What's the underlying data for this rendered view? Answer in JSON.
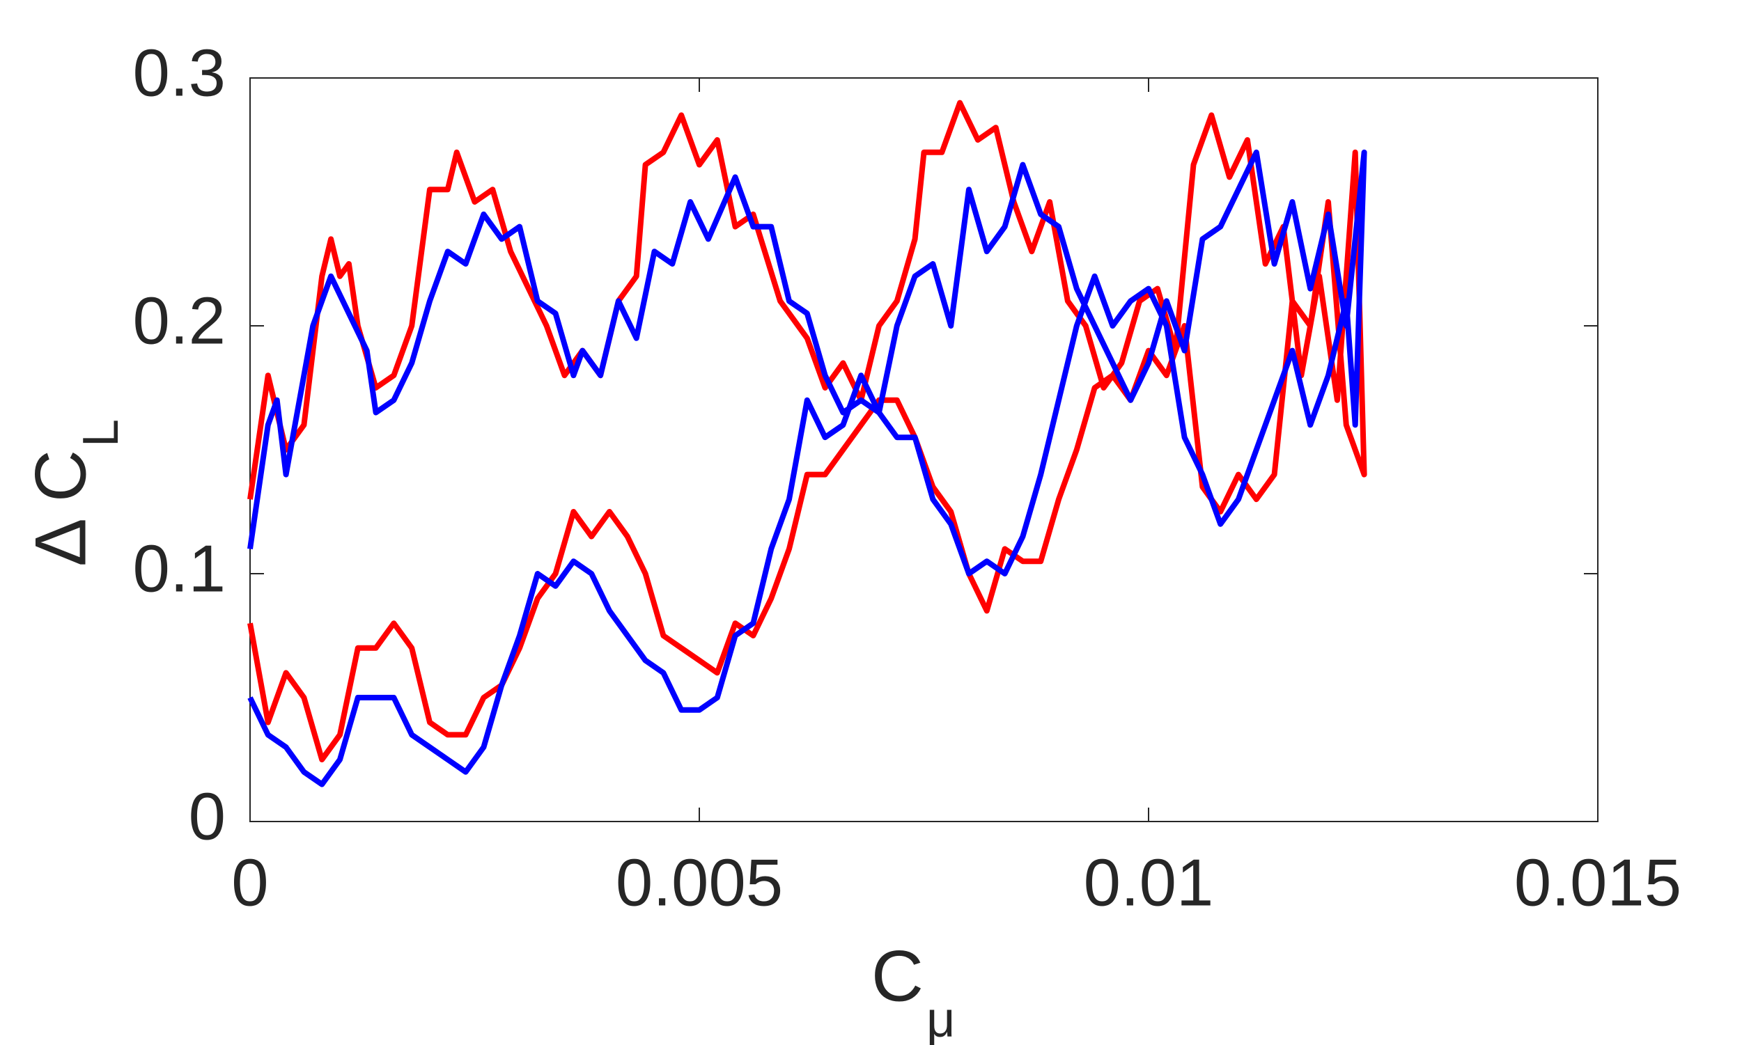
{
  "chart_data": {
    "type": "line",
    "xlabel": {
      "text": "C",
      "subscript": "μ"
    },
    "ylabel": {
      "text": "Δ C",
      "subscript": "L"
    },
    "xlim": [
      0,
      0.015
    ],
    "xticks": [
      0,
      0.005,
      0.01,
      0.015
    ],
    "ylim": [
      0,
      0.3
    ],
    "yticks": [
      0,
      0.1,
      0.2,
      0.3
    ],
    "series": [
      {
        "color": "#ff0000",
        "x": [
          0,
          0.0002,
          0.0004,
          0.0006,
          0.0008,
          0.0009,
          0.001,
          0.0011,
          0.0012,
          0.0014,
          0.0016,
          0.0018,
          0.002,
          0.0022,
          0.0023,
          0.0025,
          0.0027,
          0.0029,
          0.0031,
          0.0033,
          0.0035,
          0.0037,
          0.0039,
          0.0041,
          0.0043,
          0.0044,
          0.0046,
          0.0048,
          0.005,
          0.0052,
          0.0054,
          0.0056,
          0.0059,
          0.0062,
          0.0064,
          0.0066,
          0.0068,
          0.007,
          0.0072,
          0.0074,
          0.0075,
          0.0077,
          0.0079,
          0.0081,
          0.0083,
          0.0085,
          0.0087,
          0.0089,
          0.0091,
          0.0093,
          0.0095,
          0.0097,
          0.0099,
          0.0101,
          0.0103,
          0.0105,
          0.0107,
          0.0109,
          0.0111,
          0.0113,
          0.0115,
          0.0117,
          0.0119,
          0.0121,
          0.0123,
          0.0124,
          0.0122,
          0.012,
          0.0118,
          0.0116,
          0.0114,
          0.0112,
          0.011,
          0.0108,
          0.0106,
          0.0104,
          0.0102,
          0.01,
          0.0098,
          0.0096,
          0.0094,
          0.0092,
          0.009,
          0.0088,
          0.0086,
          0.0084,
          0.0082,
          0.008,
          0.0078,
          0.0076,
          0.0074,
          0.0072,
          0.007,
          0.0068,
          0.0066,
          0.0064,
          0.0062,
          0.006,
          0.0058,
          0.0056,
          0.0054,
          0.0052,
          0.005,
          0.0048,
          0.0046,
          0.0044,
          0.0042,
          0.004,
          0.0038,
          0.0036,
          0.0034,
          0.0032,
          0.003,
          0.0028,
          0.0026,
          0.0024,
          0.0022,
          0.002,
          0.0018,
          0.0016,
          0.0014,
          0.0012,
          0.001,
          0.0008,
          0.0006,
          0.0004,
          0.0002,
          0
        ],
        "values": [
          0.13,
          0.18,
          0.15,
          0.16,
          0.22,
          0.235,
          0.22,
          0.225,
          0.2,
          0.175,
          0.18,
          0.2,
          0.255,
          0.255,
          0.27,
          0.25,
          0.255,
          0.23,
          0.215,
          0.2,
          0.18,
          0.19,
          0.18,
          0.21,
          0.22,
          0.265,
          0.27,
          0.285,
          0.265,
          0.275,
          0.24,
          0.245,
          0.21,
          0.195,
          0.175,
          0.185,
          0.17,
          0.2,
          0.21,
          0.235,
          0.27,
          0.27,
          0.29,
          0.275,
          0.28,
          0.25,
          0.23,
          0.25,
          0.21,
          0.2,
          0.175,
          0.185,
          0.21,
          0.215,
          0.19,
          0.265,
          0.285,
          0.26,
          0.275,
          0.225,
          0.24,
          0.18,
          0.22,
          0.17,
          0.27,
          0.14,
          0.16,
          0.25,
          0.2,
          0.21,
          0.14,
          0.13,
          0.14,
          0.125,
          0.135,
          0.2,
          0.18,
          0.19,
          0.17,
          0.18,
          0.175,
          0.15,
          0.13,
          0.105,
          0.105,
          0.11,
          0.085,
          0.1,
          0.125,
          0.135,
          0.155,
          0.17,
          0.17,
          0.16,
          0.15,
          0.14,
          0.14,
          0.11,
          0.09,
          0.075,
          0.08,
          0.06,
          0.065,
          0.07,
          0.075,
          0.1,
          0.115,
          0.125,
          0.115,
          0.125,
          0.1,
          0.09,
          0.07,
          0.055,
          0.05,
          0.035,
          0.035,
          0.04,
          0.07,
          0.08,
          0.07,
          0.07,
          0.035,
          0.025,
          0.05,
          0.06,
          0.04,
          0.08
        ]
      },
      {
        "color": "#0000ff",
        "x": [
          0,
          0.0002,
          0.0003,
          0.0004,
          0.0005,
          0.0007,
          0.0009,
          0.0011,
          0.0013,
          0.0014,
          0.0016,
          0.0018,
          0.002,
          0.0022,
          0.0024,
          0.0026,
          0.0028,
          0.003,
          0.0032,
          0.0034,
          0.0036,
          0.0037,
          0.0039,
          0.0041,
          0.0043,
          0.0045,
          0.0047,
          0.0049,
          0.0051,
          0.0054,
          0.0056,
          0.0058,
          0.006,
          0.0062,
          0.0064,
          0.0066,
          0.0068,
          0.007,
          0.0072,
          0.0074,
          0.0076,
          0.0078,
          0.008,
          0.0082,
          0.0084,
          0.0086,
          0.0088,
          0.009,
          0.0092,
          0.0094,
          0.0096,
          0.0098,
          0.01,
          0.0102,
          0.0104,
          0.0106,
          0.0108,
          0.011,
          0.0112,
          0.0114,
          0.0116,
          0.0118,
          0.012,
          0.0122,
          0.0124,
          0.0123,
          0.0122,
          0.012,
          0.0118,
          0.0116,
          0.0114,
          0.0112,
          0.011,
          0.0108,
          0.0106,
          0.0104,
          0.0102,
          0.01,
          0.0098,
          0.0096,
          0.0094,
          0.0092,
          0.009,
          0.0088,
          0.0086,
          0.0084,
          0.0082,
          0.008,
          0.0078,
          0.0076,
          0.0074,
          0.0072,
          0.007,
          0.0068,
          0.0066,
          0.0064,
          0.0062,
          0.006,
          0.0058,
          0.0056,
          0.0054,
          0.0052,
          0.005,
          0.0048,
          0.0046,
          0.0044,
          0.0042,
          0.004,
          0.0038,
          0.0036,
          0.0034,
          0.0032,
          0.003,
          0.0028,
          0.0026,
          0.0024,
          0.0022,
          0.002,
          0.0018,
          0.0016,
          0.0014,
          0.0012,
          0.001,
          0.0008,
          0.0006,
          0.0004,
          0.0002,
          0
        ],
        "values": [
          0.11,
          0.16,
          0.17,
          0.14,
          0.16,
          0.2,
          0.22,
          0.205,
          0.19,
          0.165,
          0.17,
          0.185,
          0.21,
          0.23,
          0.225,
          0.245,
          0.235,
          0.24,
          0.21,
          0.205,
          0.18,
          0.19,
          0.18,
          0.21,
          0.195,
          0.23,
          0.225,
          0.25,
          0.235,
          0.26,
          0.24,
          0.24,
          0.21,
          0.205,
          0.18,
          0.165,
          0.17,
          0.165,
          0.2,
          0.22,
          0.225,
          0.2,
          0.255,
          0.23,
          0.24,
          0.265,
          0.245,
          0.24,
          0.215,
          0.2,
          0.185,
          0.17,
          0.185,
          0.21,
          0.19,
          0.235,
          0.24,
          0.255,
          0.27,
          0.225,
          0.25,
          0.215,
          0.245,
          0.2,
          0.27,
          0.16,
          0.21,
          0.18,
          0.16,
          0.19,
          0.17,
          0.15,
          0.13,
          0.12,
          0.14,
          0.155,
          0.2,
          0.215,
          0.21,
          0.2,
          0.22,
          0.2,
          0.17,
          0.14,
          0.115,
          0.1,
          0.105,
          0.1,
          0.12,
          0.13,
          0.155,
          0.155,
          0.165,
          0.18,
          0.16,
          0.155,
          0.17,
          0.13,
          0.11,
          0.08,
          0.075,
          0.05,
          0.045,
          0.045,
          0.06,
          0.065,
          0.075,
          0.085,
          0.1,
          0.105,
          0.095,
          0.1,
          0.075,
          0.055,
          0.03,
          0.02,
          0.025,
          0.03,
          0.035,
          0.05,
          0.05,
          0.05,
          0.025,
          0.015,
          0.02,
          0.03,
          0.035,
          0.05
        ]
      }
    ]
  }
}
